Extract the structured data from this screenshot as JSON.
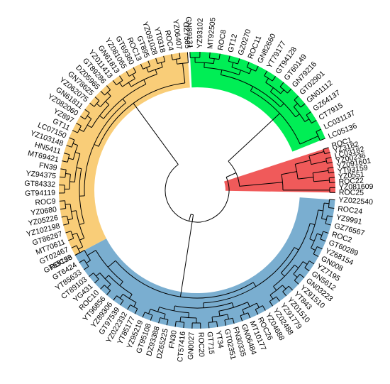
{
  "clades": [
    {
      "name": "green",
      "color": "#00ee55",
      "leaves": [
        "GN89131",
        "YZ93102",
        "MT92505",
        "ROC8",
        "GT12",
        "GZ0270",
        "ROC11",
        "GN82660",
        "YT79177",
        "GT94128",
        "GT60149",
        "GN79216",
        "GT02901",
        "GN01112",
        "GZ64137",
        "CT7915",
        "LC031137",
        "LC05136"
      ]
    },
    {
      "name": "red",
      "color": "#f05a5a",
      "leaves": [
        "ROC1",
        "YZ3182",
        "LC03182",
        "YZ00236",
        "YZ091601",
        "YT93159",
        "YZ0551",
        "ROC22",
        "YZ081609",
        "ROC25"
      ]
    },
    {
      "name": "blue",
      "color": "#7aaed0",
      "leaves": [
        "YZ022540",
        "ROC24",
        "YZ9991",
        "GZ76567",
        "ROC2",
        "GT60289",
        "YZ68154",
        "GN008",
        "YZ7195",
        "GN5612",
        "GN03223",
        "YZ91510",
        "YT843",
        "YZ01510",
        "YZ91779",
        "YZ02488",
        "YZ04688",
        "ROC26",
        "MT10177",
        "GN06484",
        "FN30335",
        "GT02351",
        "YT34",
        "GT715",
        "ROC20",
        "GN0027",
        "CT57416",
        "FN30",
        "DZ65225",
        "DZ93388",
        "GT95108",
        "YZ95219",
        "YT85177",
        "YZ022332",
        "GT97539",
        "YZ89306",
        "YT96856",
        "ROC10",
        "YG431",
        "CT89103",
        "YT85633",
        "GT6424",
        "GT69156"
      ]
    },
    {
      "name": "orange",
      "color": "#f9cd78",
      "leaves": [
        "ROC23",
        "GT02467",
        "MT70611",
        "GT86267",
        "YZ102198",
        "YZ05226",
        "YZ0680",
        "ROC9",
        "GT94119",
        "GT84332",
        "YZ94375",
        "FN39",
        "MT69421",
        "HN5411",
        "YZ103148",
        "LC07150",
        "GT11",
        "YZ897",
        "YZ082060",
        "GN61811",
        "YZ062075",
        "GN78625",
        "DZ05965",
        "GT89286",
        "YZ011413",
        "GN61813",
        "YZ081065",
        "GT69360",
        "ROC13",
        "GT895",
        "YZ091028",
        "YT0318",
        "ROC4",
        "YZ06407",
        "GZ7565"
      ]
    }
  ]
}
